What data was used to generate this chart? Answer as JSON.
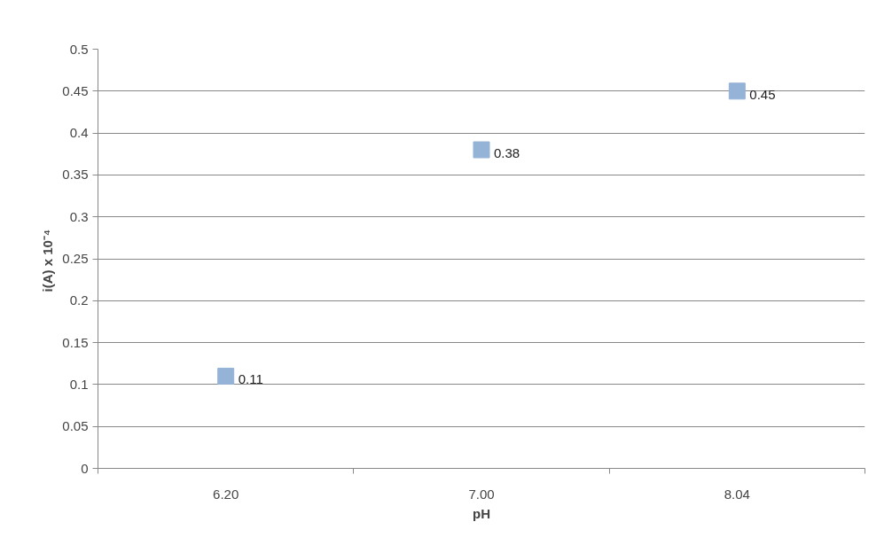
{
  "chart_data": {
    "type": "scatter",
    "xlabel": "pH",
    "ylabel": "i(A)  x 10⁻⁴",
    "categories": [
      "6.20",
      "7.00",
      "8.04"
    ],
    "series": [
      {
        "color": "#95b3d7",
        "values": [
          0.11,
          0.38,
          0.45
        ]
      }
    ],
    "marker": "square",
    "data_labels": true,
    "grid": "y",
    "ylim": [
      0,
      0.5
    ],
    "yticks": [
      0,
      0.05,
      0.1,
      0.15,
      0.2,
      0.25,
      0.3,
      0.35,
      0.4,
      0.45,
      0.5
    ]
  }
}
